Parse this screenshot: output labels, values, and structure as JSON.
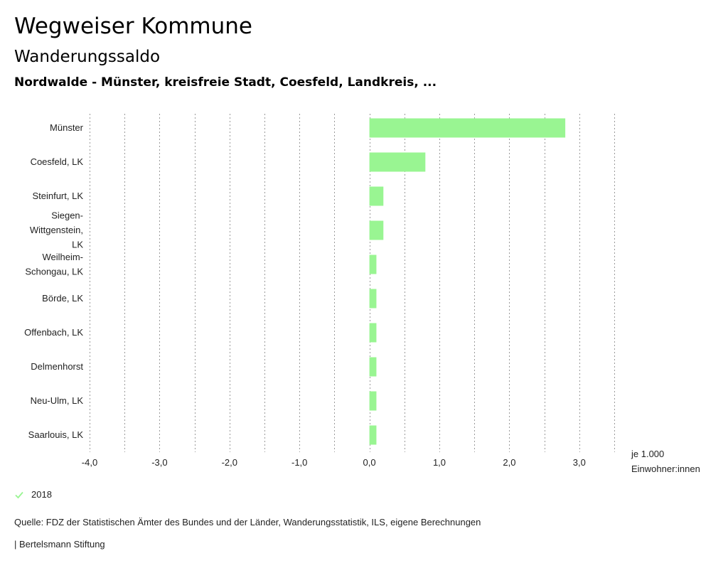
{
  "header": {
    "title": "Wegweiser Kommune",
    "subtitle": "Wanderungssaldo",
    "region": "Nordwalde - Münster, kreisfreie Stadt, Coesfeld, Landkreis, ..."
  },
  "chart_data": {
    "type": "bar",
    "orientation": "horizontal",
    "categories": [
      "Münster",
      "Coesfeld, LK",
      "Steinfurt, LK",
      "Siegen-Wittgenstein, LK",
      "Weilheim-Schongau, LK",
      "Börde, LK",
      "Offenbach, LK",
      "Delmenhorst",
      "Neu-Ulm, LK",
      "Saarlouis, LK"
    ],
    "category_label_lines": [
      [
        "Münster"
      ],
      [
        "Coesfeld, LK"
      ],
      [
        "Steinfurt, LK"
      ],
      [
        "Siegen-",
        "Wittgenstein,",
        "LK"
      ],
      [
        "Weilheim-",
        "Schongau, LK"
      ],
      [
        "Börde, LK"
      ],
      [
        "Offenbach, LK"
      ],
      [
        "Delmenhorst"
      ],
      [
        "Neu-Ulm, LK"
      ],
      [
        "Saarlouis, LK"
      ]
    ],
    "series": [
      {
        "name": "2018",
        "color": "#99f592",
        "values": [
          2.8,
          0.8,
          0.2,
          0.2,
          0.1,
          0.1,
          0.1,
          0.1,
          0.1,
          0.1
        ]
      }
    ],
    "xlim": [
      -4.0,
      3.5
    ],
    "xticks": [
      -4.0,
      -3.0,
      -2.0,
      -1.0,
      0.0,
      1.0,
      2.0,
      3.0
    ],
    "xtick_labels": [
      "-4,0",
      "-3,0",
      "-2,0",
      "-1,0",
      "0,0",
      "1,0",
      "2,0",
      "3,0"
    ],
    "unit_label": [
      "je 1.000",
      "Einwohner:innen"
    ],
    "grid": "vertical-dotted"
  },
  "legend": {
    "label": "2018",
    "icon": "check-icon",
    "color": "#99f592"
  },
  "footer": {
    "source": "Quelle: FDZ der Statistischen Ämter des Bundes und der Länder, Wanderungsstatistik, ILS, eigene Berechnungen",
    "credit": "| Bertelsmann Stiftung"
  }
}
